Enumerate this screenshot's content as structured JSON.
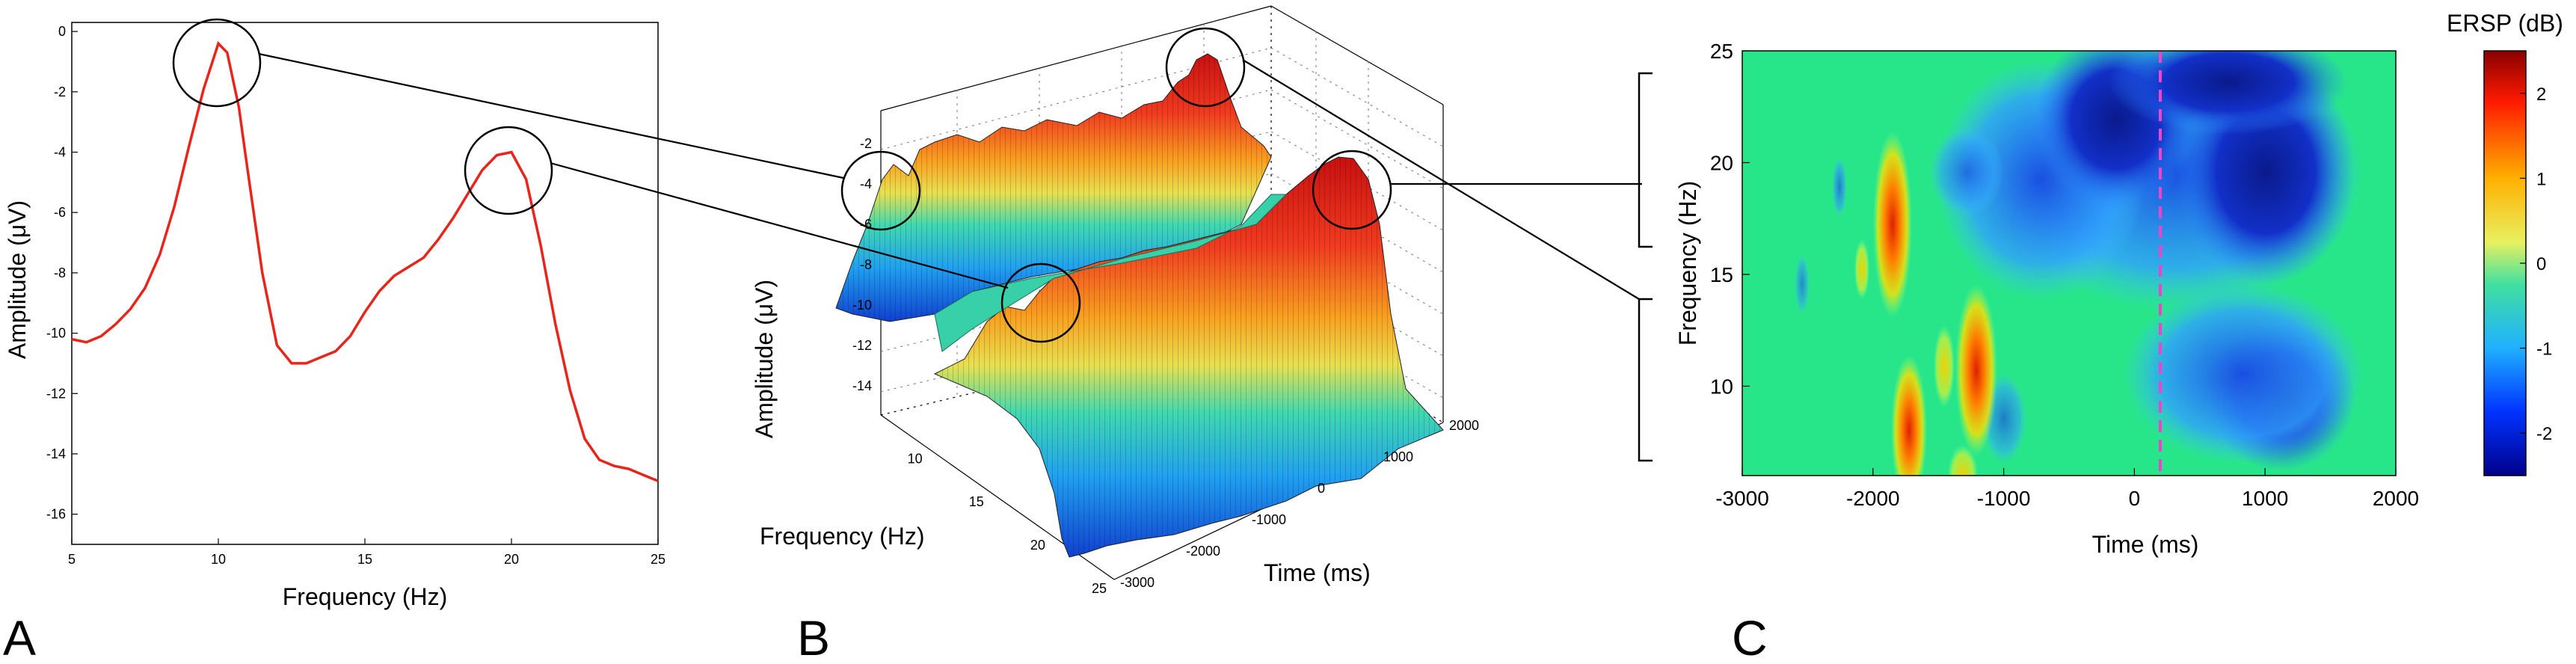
{
  "panel_labels": [
    "A",
    "B",
    "C"
  ],
  "colors": {
    "line": "#e8251b",
    "marker_line": "#ee44cc"
  },
  "chart_data": [
    {
      "type": "line",
      "panel": "A",
      "xlabel": "Frequency (Hz)",
      "ylabel": "Amplitude (μV)",
      "xlim": [
        5,
        25
      ],
      "ylim": [
        -17,
        0.3
      ],
      "xticks": [
        5,
        10,
        15,
        20,
        25
      ],
      "yticks": [
        0,
        -2,
        -4,
        -6,
        -8,
        -10,
        -12,
        -14,
        -16
      ],
      "grid": false,
      "series": [
        {
          "x": [
            5,
            5.5,
            6,
            6.5,
            7,
            7.5,
            8,
            8.5,
            9,
            9.5,
            10,
            10.3,
            10.7,
            11,
            11.5,
            12,
            12.5,
            13,
            13.5,
            14,
            14.5,
            15,
            15.5,
            16,
            16.5,
            17,
            17.5,
            18,
            18.5,
            19,
            19.5,
            20,
            20.5,
            21,
            21.5,
            22,
            22.5,
            23,
            23.5,
            24,
            24.5,
            25
          ],
          "y": [
            -10.2,
            -10.3,
            -10.1,
            -9.7,
            -9.2,
            -8.5,
            -7.4,
            -5.8,
            -3.8,
            -1.9,
            -0.4,
            -0.7,
            -2.5,
            -4.6,
            -8.0,
            -10.4,
            -11.0,
            -11.0,
            -10.8,
            -10.6,
            -10.1,
            -9.3,
            -8.6,
            -8.1,
            -7.8,
            -7.5,
            -6.9,
            -6.2,
            -5.4,
            -4.6,
            -4.1,
            -4.0,
            -4.9,
            -7.1,
            -9.7,
            -11.9,
            -13.5,
            -14.2,
            -14.4,
            -14.5,
            -14.7,
            -14.9
          ]
        }
      ]
    },
    {
      "type": "surface",
      "panel": "B",
      "xlabel": "Time (ms)",
      "ylabel": "Frequency (Hz)",
      "zlabel": "Amplitude (μV)",
      "xticks": [
        -3000,
        -2000,
        -1000,
        0,
        1000,
        2000
      ],
      "yticks": [
        10,
        15,
        20,
        25
      ],
      "zticks": [
        -2,
        -4,
        -6,
        -8,
        -10,
        -12,
        -14
      ],
      "grid": true
    },
    {
      "type": "heatmap",
      "panel": "C",
      "xlabel": "Time (ms)",
      "ylabel": "Frequency (Hz)",
      "xlim": [
        -3000,
        2000
      ],
      "ylim": [
        6,
        25
      ],
      "xticks": [
        -3000,
        -2000,
        -1000,
        0,
        1000,
        2000
      ],
      "yticks": [
        10,
        15,
        20,
        25
      ],
      "colorbar": {
        "title": "ERSP (dB)",
        "range": [
          -2.5,
          2.5
        ],
        "ticks": [
          2,
          1,
          0,
          -1,
          -2
        ]
      },
      "vertical_marker_x": 0
    }
  ]
}
